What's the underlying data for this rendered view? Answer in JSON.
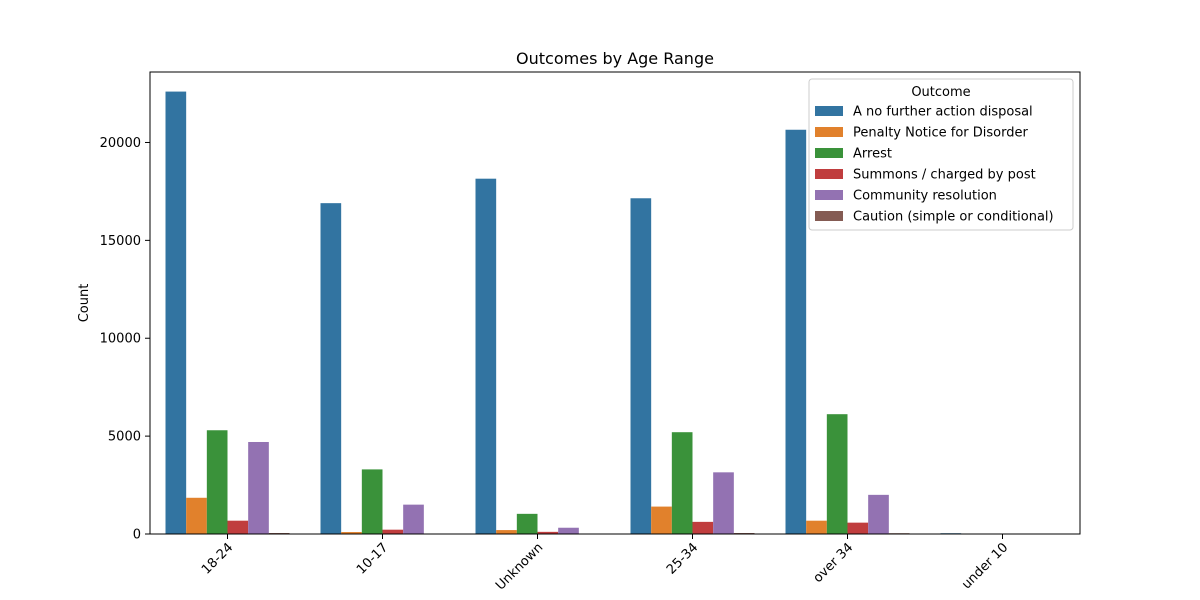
{
  "chart_data": {
    "type": "bar",
    "title": "Outcomes by Age Range",
    "xlabel": "",
    "ylabel": "Count",
    "categories": [
      "18-24",
      "10-17",
      "Unknown",
      "25-34",
      "over 34",
      "under 10"
    ],
    "ylim": [
      0,
      23600
    ],
    "yticks": [
      0,
      5000,
      10000,
      15000,
      20000
    ],
    "grid": false,
    "legend": {
      "title": "Outcome",
      "placement": "top-right"
    },
    "series": [
      {
        "name": "A no further action disposal",
        "color": "#3274a1",
        "values": [
          22600,
          16900,
          18150,
          17150,
          20650,
          40
        ]
      },
      {
        "name": "Penalty Notice for Disorder",
        "color": "#e1812c",
        "values": [
          1850,
          100,
          200,
          1400,
          680,
          0
        ]
      },
      {
        "name": "Arrest",
        "color": "#3a923a",
        "values": [
          5300,
          3300,
          1030,
          5200,
          6120,
          0
        ]
      },
      {
        "name": "Summons / charged by post",
        "color": "#c03d3e",
        "values": [
          680,
          220,
          110,
          620,
          580,
          0
        ]
      },
      {
        "name": "Community resolution",
        "color": "#9372b2",
        "values": [
          4700,
          1500,
          320,
          3150,
          2000,
          0
        ]
      },
      {
        "name": "Caution (simple or conditional)",
        "color": "#845b53",
        "values": [
          50,
          10,
          10,
          50,
          40,
          0
        ]
      }
    ]
  }
}
